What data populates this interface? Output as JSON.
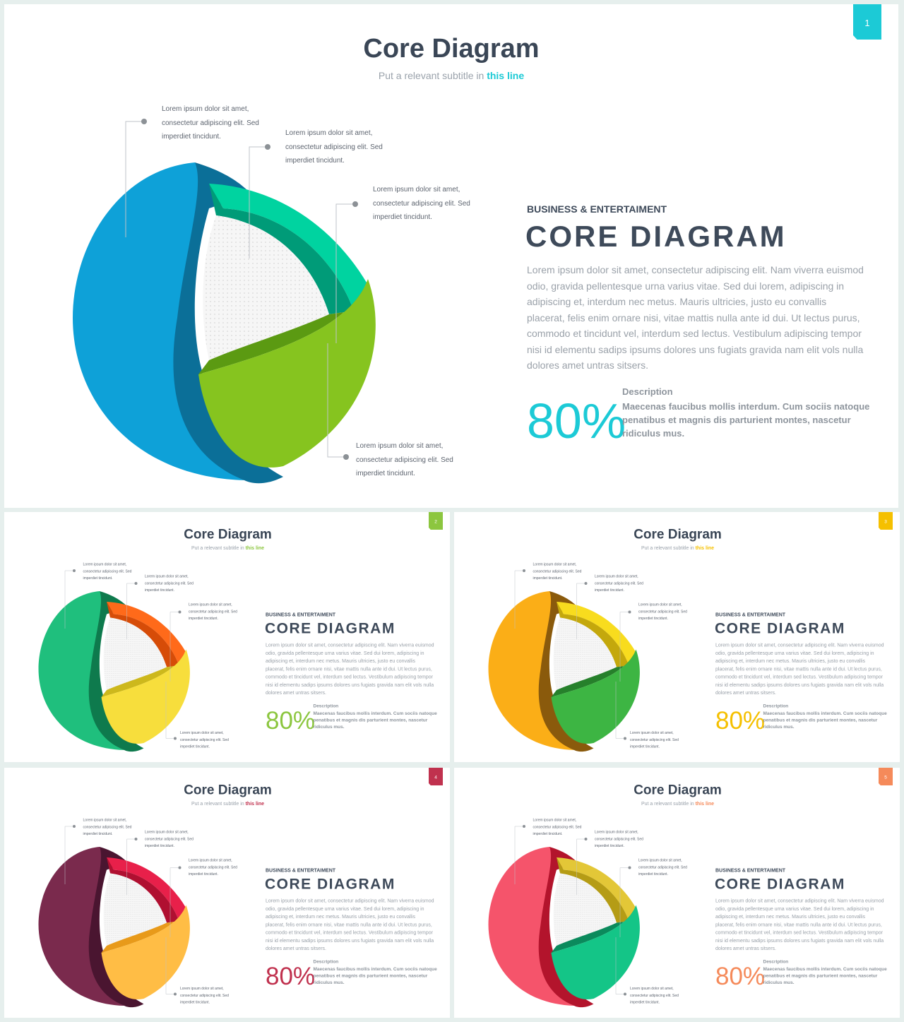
{
  "slides": [
    {
      "badge": "1",
      "title": "Core Diagram",
      "subtitle_prefix": "Put a relevant subtitle in ",
      "subtitle_highlight": "this line",
      "kicker": "BUSINESS & ENTERTAIMENT",
      "heading": "CORE DIAGRAM",
      "body": "Lorem ipsum dolor sit amet, consectetur adipiscing elit. Nam viverra euismod odio, gravida pellentesque urna varius vitae. Sed dui lorem, adipiscing in adipiscing et, interdum nec metus. Mauris ultricies, justo eu convallis placerat, felis enim ornare nisi, vitae mattis nulla ante id dui. Ut lectus purus, commodo et tincidunt vel, interdum sed lectus. Vestibulum adipiscing tempor nisi id elementu sadips ipsums dolores uns fugiats gravida nam elit vols nulla dolores amet untras sitsers.",
      "percent": "80%",
      "desc_label": "Description",
      "desc": "Maecenas faucibus mollis interdum. Cum sociis natoque penatibus et magnis dis parturient montes, nascetur ridiculus mus.",
      "callouts": [
        "Lorem ipsum dolor sit amet, consectetur adipiscing elit. Sed imperdiet tincidunt.",
        "Lorem ipsum dolor sit amet, consectetur adipiscing elit. Sed imperdiet tincidunt.",
        "Lorem ipsum dolor sit amet, consectetur adipiscing elit. Sed imperdiet tincidunt.",
        "Lorem ipsum dolor sit amet, consectetur adipiscing elit. Sed imperdiet tincidunt."
      ],
      "colors": {
        "accent": "#1ccad6",
        "outer": "#0ea1d8",
        "outer_inner": "#0b6f98",
        "mid": "#00d3a0",
        "mid_dark": "#009b78",
        "low": "#86c41f",
        "low_dark": "#5b9a12"
      }
    },
    {
      "badge": "2",
      "title": "Core Diagram",
      "subtitle_prefix": "Put a relevant subtitle in ",
      "subtitle_highlight": "this line",
      "kicker": "BUSINESS & ENTERTAIMENT",
      "heading": "CORE DIAGRAM",
      "body": "Lorem ipsum dolor sit amet, consectetur adipiscing elit. Nam viverra euismod odio, gravida pellentesque urna varius vitae. Sed dui lorem, adipiscing in adipiscing et, interdum nec metus. Mauris ultricies, justo eu convallis placerat, felis enim ornare nisi, vitae mattis nulla ante id dui. Ut lectus purus, commodo et tincidunt vel, interdum sed lectus. Vestibulum adipiscing tempor nisi id elementu sadips ipsums dolores uns fugiats gravida nam elit vols nulla dolores amet untras sitsers.",
      "percent": "80%",
      "desc_label": "Description",
      "desc": "Maecenas faucibus mollis interdum. Cum sociis natoque penatibus et magnis dis parturient montes, nascetur ridiculus mus.",
      "callouts": [
        "Lorem ipsum dolor sit amet, consectetur adipiscing elit. Sed imperdiet tincidunt.",
        "Lorem ipsum dolor sit amet, consectetur adipiscing elit. Sed imperdiet tincidunt.",
        "Lorem ipsum dolor sit amet, consectetur adipiscing elit. Sed imperdiet tincidunt.",
        "Lorem ipsum dolor sit amet, consectetur adipiscing elit. Sed imperdiet tincidunt."
      ],
      "colors": {
        "accent": "#8cc63f",
        "outer": "#1fbf7d",
        "outer_inner": "#0e7a4d",
        "mid": "#ff6a1a",
        "mid_dark": "#d64c08",
        "low": "#f7de3c",
        "low_dark": "#cdb81c"
      }
    },
    {
      "badge": "3",
      "title": "Core Diagram",
      "subtitle_prefix": "Put a relevant subtitle in ",
      "subtitle_highlight": "this line",
      "kicker": "BUSINESS & ENTERTAIMENT",
      "heading": "CORE DIAGRAM",
      "body": "Lorem ipsum dolor sit amet, consectetur adipiscing elit. Nam viverra euismod odio, gravida pellentesque urna varius vitae. Sed dui lorem, adipiscing in adipiscing et, interdum nec metus. Mauris ultricies, justo eu convallis placerat, felis enim ornare nisi, vitae mattis nulla ante id dui. Ut lectus purus, commodo et tincidunt vel, interdum sed lectus. Vestibulum adipiscing tempor nisi id elementu sadips ipsums dolores uns fugiats gravida nam elit vols nulla dolores amet untras sitsers.",
      "percent": "80%",
      "desc_label": "Description",
      "desc": "Maecenas faucibus mollis interdum. Cum sociis natoque penatibus et magnis dis parturient montes, nascetur ridiculus mus.",
      "callouts": [
        "Lorem ipsum dolor sit amet, consectetur adipiscing elit. Sed imperdiet tincidunt.",
        "Lorem ipsum dolor sit amet, consectetur adipiscing elit. Sed imperdiet tincidunt.",
        "Lorem ipsum dolor sit amet, consectetur adipiscing elit. Sed imperdiet tincidunt.",
        "Lorem ipsum dolor sit amet, consectetur adipiscing elit. Sed imperdiet tincidunt."
      ],
      "colors": {
        "accent": "#f5c000",
        "outer": "#fbae17",
        "outer_inner": "#8a5a0c",
        "mid": "#f8dc1e",
        "mid_dark": "#c4a80c",
        "low": "#3db543",
        "low_dark": "#26802b"
      }
    },
    {
      "badge": "4",
      "title": "Core Diagram",
      "subtitle_prefix": "Put a relevant subtitle in ",
      "subtitle_highlight": "this line",
      "kicker": "BUSINESS & ENTERTAIMENT",
      "heading": "CORE DIAGRAM",
      "body": "Lorem ipsum dolor sit amet, consectetur adipiscing elit. Nam viverra euismod odio, gravida pellentesque urna varius vitae. Sed dui lorem, adipiscing in adipiscing et, interdum nec metus. Mauris ultricies, justo eu convallis placerat, felis enim ornare nisi, vitae mattis nulla ante id dui. Ut lectus purus, commodo et tincidunt vel, interdum sed lectus. Vestibulum adipiscing tempor nisi id elementu sadips ipsums dolores uns fugiats gravida nam elit vols nulla dolores amet untras sitsers.",
      "percent": "80%",
      "desc_label": "Description",
      "desc": "Maecenas faucibus mollis interdum. Cum sociis natoque penatibus et magnis dis parturient montes, nascetur ridiculus mus.",
      "callouts": [
        "Lorem ipsum dolor sit amet, consectetur adipiscing elit. Sed imperdiet tincidunt.",
        "Lorem ipsum dolor sit amet, consectetur adipiscing elit. Sed imperdiet tincidunt.",
        "Lorem ipsum dolor sit amet, consectetur adipiscing elit. Sed imperdiet tincidunt.",
        "Lorem ipsum dolor sit amet, consectetur adipiscing elit. Sed imperdiet tincidunt."
      ],
      "colors": {
        "accent": "#c0314e",
        "outer": "#7a2a4d",
        "outer_inner": "#4a1530",
        "mid": "#e8204a",
        "mid_dark": "#b01031",
        "low": "#ffbd45",
        "low_dark": "#e89a1a"
      }
    },
    {
      "badge": "5",
      "title": "Core Diagram",
      "subtitle_prefix": "Put a relevant subtitle in ",
      "subtitle_highlight": "this line",
      "kicker": "BUSINESS & ENTERTAIMENT",
      "heading": "CORE DIAGRAM",
      "body": "Lorem ipsum dolor sit amet, consectetur adipiscing elit. Nam viverra euismod odio, gravida pellentesque urna varius vitae. Sed dui lorem, adipiscing in adipiscing et, interdum nec metus. Mauris ultricies, justo eu convallis placerat, felis enim ornare nisi, vitae mattis nulla ante id dui. Ut lectus purus, commodo et tincidunt vel, interdum sed lectus. Vestibulum adipiscing tempor nisi id elementu sadips ipsums dolores uns fugiats gravida nam elit vols nulla dolores amet untras sitsers.",
      "percent": "80%",
      "desc_label": "Description",
      "desc": "Maecenas faucibus mollis interdum. Cum sociis natoque penatibus et magnis dis parturient montes, nascetur ridiculus mus.",
      "callouts": [
        "Lorem ipsum dolor sit amet, consectetur adipiscing elit. Sed imperdiet tincidunt.",
        "Lorem ipsum dolor sit amet, consectetur adipiscing elit. Sed imperdiet tincidunt.",
        "Lorem ipsum dolor sit amet, consectetur adipiscing elit. Sed imperdiet tincidunt.",
        "Lorem ipsum dolor sit amet, consectetur adipiscing elit. Sed imperdiet tincidunt."
      ],
      "colors": {
        "accent": "#f58a5a",
        "outer": "#f5546b",
        "outer_inner": "#b3142c",
        "mid": "#e3c737",
        "mid_dark": "#b59c15",
        "low": "#14c587",
        "low_dark": "#0b8a5c"
      }
    }
  ]
}
